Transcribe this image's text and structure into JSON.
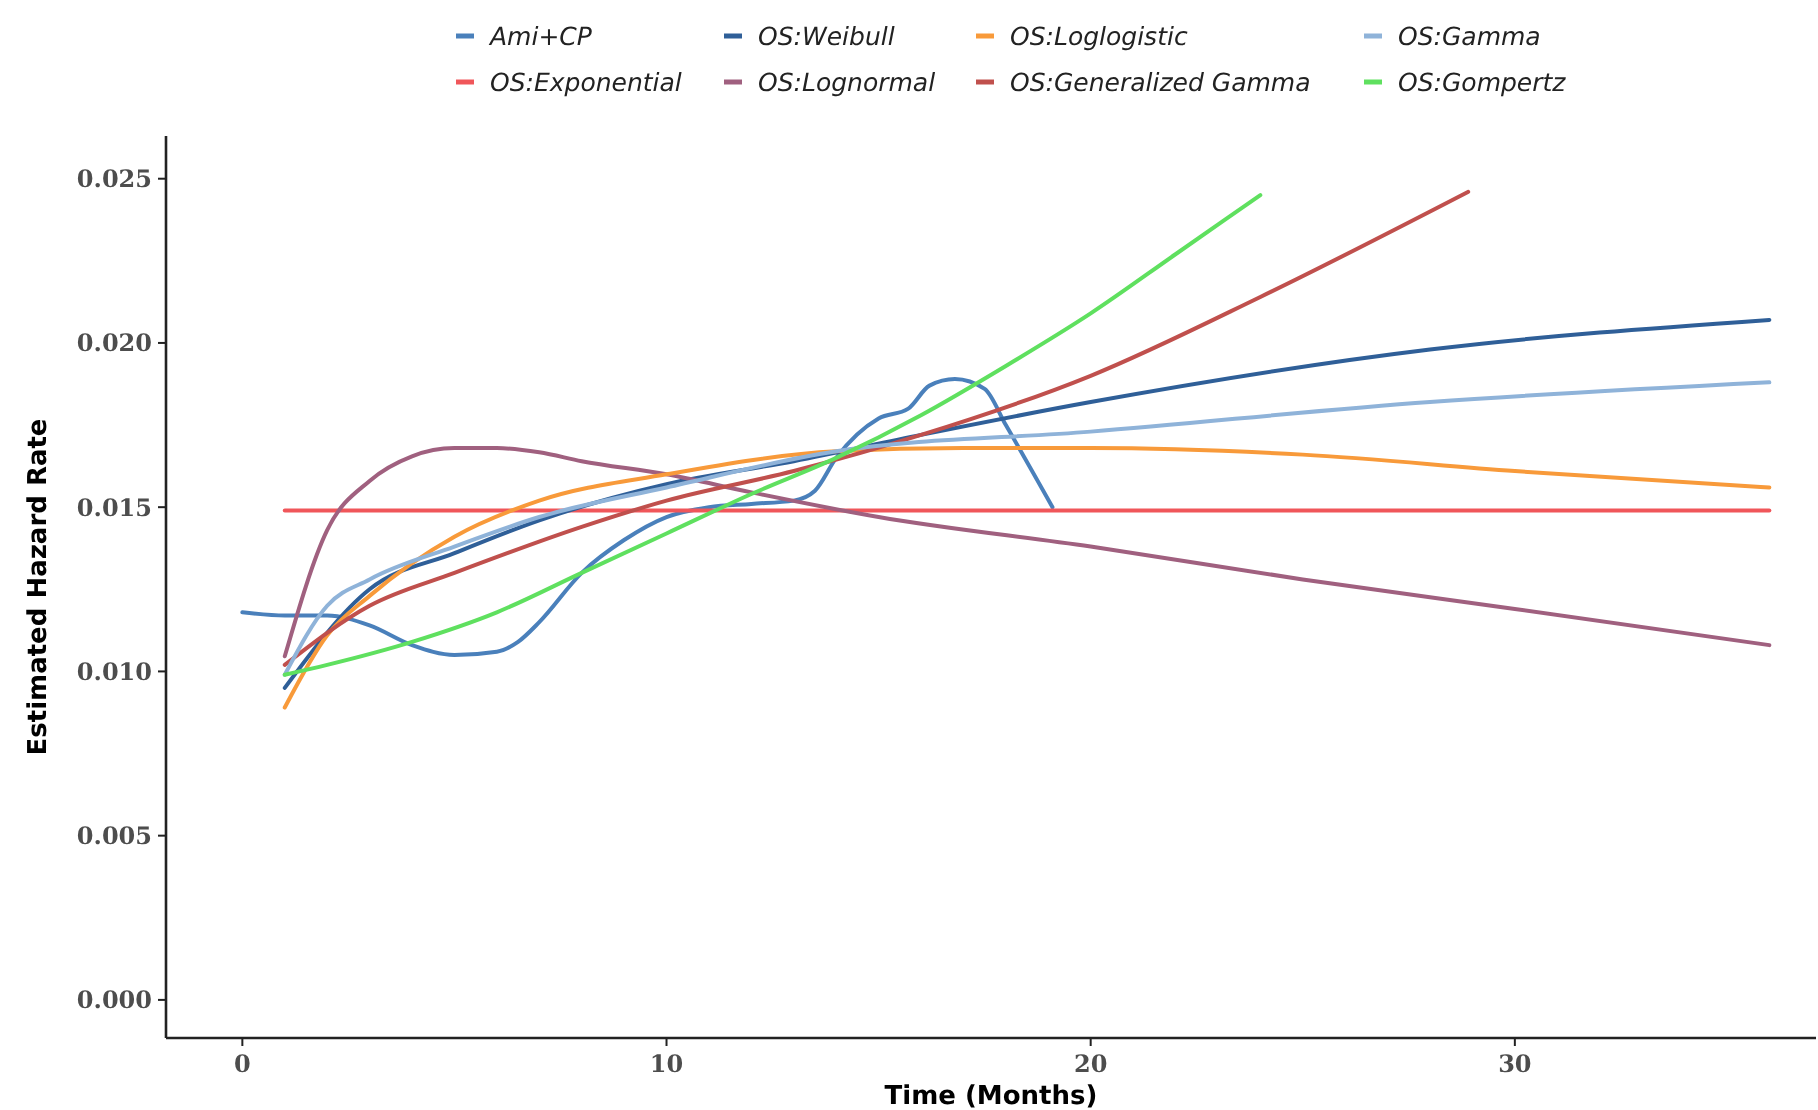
{
  "chart_data": {
    "type": "line",
    "xlabel": "Time (Months)",
    "ylabel": "Estimated Hazard Rate",
    "xlim": [
      -1.8,
      37.1
    ],
    "ylim": [
      -0.00116,
      0.0263
    ],
    "xticks": [
      0,
      10,
      20,
      30
    ],
    "yticks": [
      {
        "value": 0,
        "label": "0.000"
      },
      {
        "value": 0.005,
        "label": "0.005"
      },
      {
        "value": 0.01,
        "label": "0.010"
      },
      {
        "value": 0.015,
        "label": "0.015"
      },
      {
        "value": 0.02,
        "label": "0.020"
      },
      {
        "value": 0.025,
        "label": "0.025"
      }
    ],
    "grid": false,
    "legend": "top",
    "series": [
      {
        "name": "Ami+CP",
        "color": "#4a80bb",
        "x": [
          0,
          1,
          2,
          3,
          4,
          5,
          6,
          6.5,
          7,
          8,
          9,
          10,
          11,
          12,
          13,
          13.5,
          14,
          15,
          15.7,
          16.2,
          16.8,
          17.5,
          18,
          19.1
        ],
        "values": [
          0.0118,
          0.0117,
          0.0117,
          0.0114,
          0.0108,
          0.0105,
          0.0106,
          0.0109,
          0.0115,
          0.013,
          0.014,
          0.0147,
          0.015,
          0.0151,
          0.0152,
          0.0155,
          0.0165,
          0.0177,
          0.018,
          0.0187,
          0.0189,
          0.0186,
          0.0175,
          0.015
        ]
      },
      {
        "name": "OS:Exponential",
        "color": "#f0565a",
        "x": [
          1,
          36
        ],
        "values": [
          0.0149,
          0.0149
        ]
      },
      {
        "name": "OS:Weibull",
        "color": "#2f5f98",
        "x": [
          1,
          3,
          5,
          7,
          10,
          13,
          16,
          20,
          28,
          36
        ],
        "values": [
          0.0095,
          0.0125,
          0.0136,
          0.0146,
          0.0157,
          0.0164,
          0.0172,
          0.0182,
          0.0198,
          0.0207
        ]
      },
      {
        "name": "OS:Lognormal",
        "color": "#a0607f",
        "x": [
          1,
          2,
          3,
          4,
          5,
          6,
          7,
          8,
          10,
          12,
          15,
          20,
          25,
          30,
          36
        ],
        "values": [
          0.01046,
          0.0143,
          0.0158,
          0.01655,
          0.0168,
          0.0168,
          0.01667,
          0.0164,
          0.016,
          0.01545,
          0.0147,
          0.0138,
          0.0128,
          0.0119,
          0.0108
        ]
      },
      {
        "name": "OS:Loglogistic",
        "color": "#f89a3a",
        "x": [
          1,
          2,
          3,
          5,
          7,
          10,
          14,
          17,
          20,
          25,
          30,
          36
        ],
        "values": [
          0.0089,
          0.0111,
          0.0123,
          0.0141,
          0.0152,
          0.016,
          0.0167,
          0.0168,
          0.0168,
          0.0166,
          0.0161,
          0.0156
        ]
      },
      {
        "name": "OS:Generalized Gamma",
        "color": "#c0504d",
        "x": [
          1,
          3,
          5,
          8,
          10,
          13,
          16,
          20,
          24,
          28.9
        ],
        "values": [
          0.0102,
          0.012,
          0.013,
          0.0144,
          0.0152,
          0.0161,
          0.0172,
          0.019,
          0.0214,
          0.0246
        ]
      },
      {
        "name": "OS:Gamma",
        "color": "#8fb3d9",
        "x": [
          1,
          2,
          3,
          5,
          7,
          10,
          14,
          20,
          28,
          36
        ],
        "values": [
          0.0099,
          0.012,
          0.0128,
          0.0138,
          0.0147,
          0.0156,
          0.0167,
          0.0173,
          0.0182,
          0.0188
        ]
      },
      {
        "name": "OS:Gompertz",
        "color": "#5fe05f",
        "x": [
          1,
          2,
          4,
          6,
          8,
          10,
          12,
          14,
          16,
          18,
          20,
          22,
          24
        ],
        "values": [
          0.0099,
          0.0102,
          0.0109,
          0.0118,
          0.013,
          0.0142,
          0.0154,
          0.0165,
          0.0178,
          0.0193,
          0.0209,
          0.0227,
          0.0245
        ]
      }
    ]
  }
}
